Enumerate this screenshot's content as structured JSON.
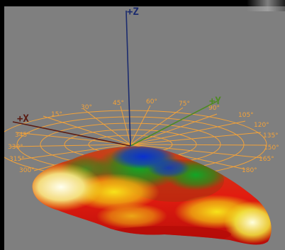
{
  "viewer": {
    "axes": {
      "z": {
        "label": "+Z",
        "color": "#1b2b6e"
      },
      "x": {
        "label": "+X",
        "color": "#5a1a10"
      },
      "y": {
        "label": "+Y",
        "color": "#4f8a23"
      }
    },
    "polar_grid": {
      "color": "#f2a23a",
      "angle_labels": [
        "15°",
        "30°",
        "45°",
        "60°",
        "75°",
        "90°",
        "105°",
        "120°",
        "135°",
        "150°",
        "165°",
        "180°",
        "345°",
        "330°",
        "315°",
        "300°"
      ]
    },
    "background_color": "#7f7f7f",
    "surface_colors": [
      "#0a2fd0",
      "#14a020",
      "#e21010",
      "#f2e818",
      "#ffffe6"
    ]
  }
}
